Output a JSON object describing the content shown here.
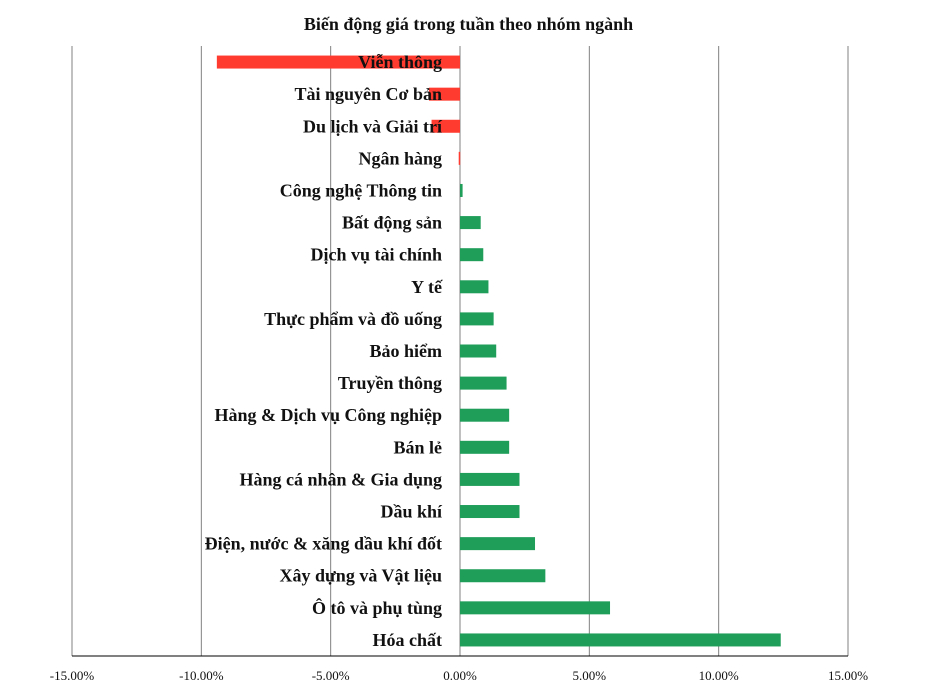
{
  "chart_data": {
    "type": "bar",
    "orientation": "horizontal",
    "title": "Biến động giá trong tuần theo nhóm ngành",
    "xlabel": "",
    "ylabel": "",
    "xlim": [
      -15,
      15
    ],
    "x_ticks": [
      -15,
      -10,
      -5,
      0,
      5,
      10,
      15
    ],
    "x_tick_labels": [
      "-15.00%",
      "-10.00%",
      "-5.00%",
      "0.00%",
      "5.00%",
      "10.00%",
      "15.00%"
    ],
    "grid": "vertical",
    "legend": "none",
    "colors": {
      "positive": "#1f9e5a",
      "negative": "#ff3b2f",
      "grid": "#808080",
      "axis": "#000000"
    },
    "categories": [
      "Viễn thông",
      "Tài nguyên Cơ bản",
      "Du lịch và Giải trí",
      "Ngân hàng",
      "Công nghệ Thông tin",
      "Bất động sản",
      "Dịch vụ tài chính",
      "Y tế",
      "Thực phẩm và đồ uống",
      "Bảo hiểm",
      "Truyền thông",
      "Hàng & Dịch vụ Công nghiệp",
      "Bán lẻ",
      "Hàng cá nhân & Gia dụng",
      "Dầu khí",
      "Điện, nước & xăng dầu khí đốt",
      "Xây dựng và Vật liệu",
      "Ô tô và phụ tùng",
      "Hóa chất"
    ],
    "values": [
      -9.4,
      -1.2,
      -1.1,
      -0.05,
      0.1,
      0.8,
      0.9,
      1.1,
      1.3,
      1.4,
      1.8,
      1.9,
      1.9,
      2.3,
      2.3,
      2.9,
      3.3,
      5.8,
      12.4
    ]
  }
}
